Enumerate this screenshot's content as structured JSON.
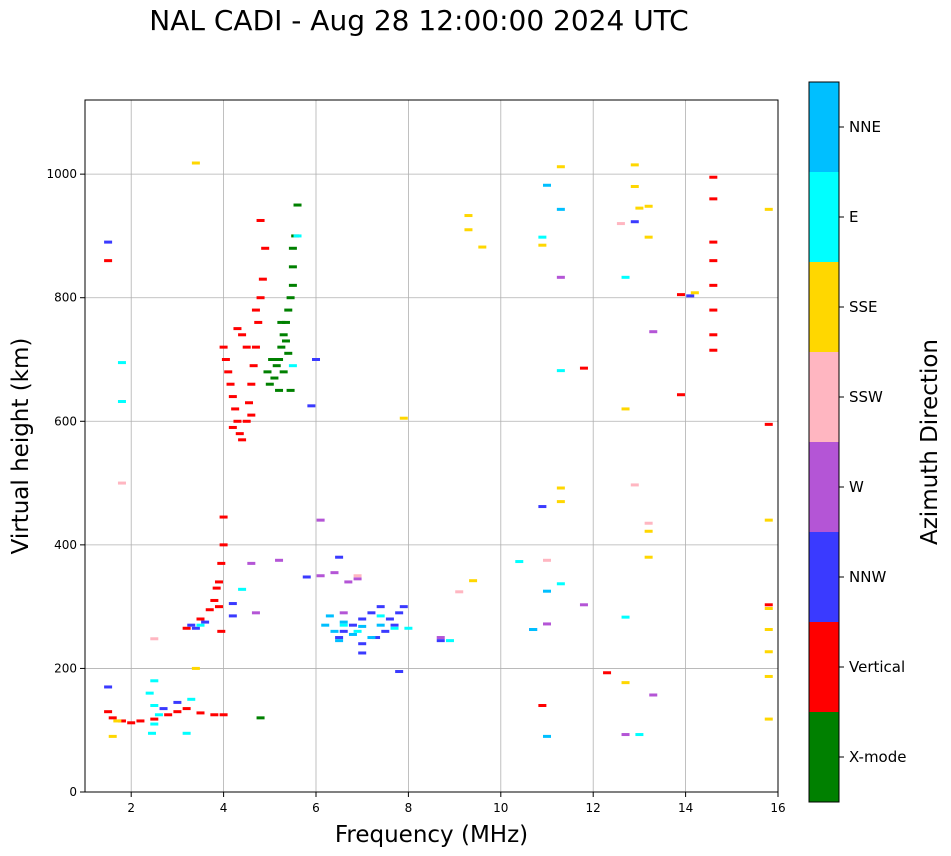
{
  "chart_data": {
    "type": "scatter",
    "title": "NAL CADI - Aug 28 12:00:00 2024 UTC",
    "xlabel": "Frequency (MHz)",
    "ylabel": "Virtual height (km)",
    "xlim": [
      1,
      16
    ],
    "ylim": [
      0,
      1120
    ],
    "xticks": [
      2,
      4,
      6,
      8,
      10,
      12,
      14,
      16
    ],
    "yticks": [
      0,
      200,
      400,
      600,
      800,
      1000
    ],
    "grid": true,
    "colorbar": {
      "label": "Azimuth Direction",
      "categories": [
        "X-mode",
        "Vertical",
        "NNW",
        "W",
        "SSW",
        "SSE",
        "E",
        "NNE"
      ],
      "colors": [
        "#008000",
        "#ff0000",
        "#3a3aff",
        "#b455d6",
        "#ffb6c1",
        "#ffd700",
        "#00ffff",
        "#00bfff"
      ]
    },
    "series": [
      {
        "name": "X-mode",
        "points": [
          [
            5.0,
            660
          ],
          [
            5.1,
            670
          ],
          [
            5.15,
            690
          ],
          [
            5.2,
            700
          ],
          [
            5.25,
            720
          ],
          [
            5.3,
            740
          ],
          [
            5.35,
            760
          ],
          [
            5.4,
            780
          ],
          [
            5.45,
            800
          ],
          [
            5.5,
            820
          ],
          [
            5.5,
            850
          ],
          [
            5.5,
            880
          ],
          [
            5.55,
            900
          ],
          [
            5.6,
            950
          ],
          [
            5.3,
            680
          ],
          [
            5.4,
            710
          ],
          [
            5.45,
            650
          ],
          [
            5.35,
            730
          ],
          [
            5.25,
            760
          ],
          [
            4.95,
            680
          ],
          [
            5.05,
            700
          ],
          [
            5.2,
            650
          ],
          [
            4.8,
            120
          ]
        ]
      },
      {
        "name": "Vertical",
        "points": [
          [
            1.5,
            860
          ],
          [
            1.5,
            130
          ],
          [
            1.6,
            120
          ],
          [
            1.8,
            115
          ],
          [
            2.0,
            112
          ],
          [
            2.2,
            115
          ],
          [
            2.5,
            118
          ],
          [
            2.8,
            125
          ],
          [
            3.0,
            130
          ],
          [
            3.2,
            135
          ],
          [
            3.5,
            128
          ],
          [
            3.8,
            125
          ],
          [
            4.0,
            125
          ],
          [
            3.2,
            265
          ],
          [
            3.5,
            280
          ],
          [
            3.7,
            295
          ],
          [
            3.8,
            310
          ],
          [
            3.9,
            340
          ],
          [
            3.95,
            370
          ],
          [
            4.0,
            400
          ],
          [
            4.0,
            445
          ],
          [
            3.9,
            300
          ],
          [
            3.85,
            330
          ],
          [
            3.95,
            260
          ],
          [
            4.0,
            720
          ],
          [
            4.05,
            700
          ],
          [
            4.1,
            680
          ],
          [
            4.15,
            660
          ],
          [
            4.2,
            640
          ],
          [
            4.25,
            620
          ],
          [
            4.3,
            600
          ],
          [
            4.35,
            580
          ],
          [
            4.4,
            570
          ],
          [
            4.5,
            600
          ],
          [
            4.55,
            630
          ],
          [
            4.6,
            660
          ],
          [
            4.65,
            690
          ],
          [
            4.7,
            720
          ],
          [
            4.75,
            760
          ],
          [
            4.8,
            800
          ],
          [
            4.85,
            830
          ],
          [
            4.9,
            880
          ],
          [
            4.8,
            925
          ],
          [
            4.3,
            750
          ],
          [
            4.4,
            740
          ],
          [
            4.7,
            780
          ],
          [
            4.6,
            610
          ],
          [
            4.2,
            590
          ],
          [
            4.5,
            720
          ],
          [
            10.9,
            140
          ],
          [
            12.3,
            193
          ],
          [
            11.8,
            686
          ],
          [
            13.9,
            643
          ],
          [
            13.9,
            805
          ],
          [
            14.6,
            740
          ],
          [
            14.6,
            780
          ],
          [
            14.6,
            820
          ],
          [
            14.6,
            860
          ],
          [
            14.6,
            890
          ],
          [
            14.6,
            960
          ],
          [
            14.6,
            995
          ],
          [
            14.6,
            715
          ],
          [
            15.8,
            595
          ],
          [
            15.8,
            303
          ]
        ]
      },
      {
        "name": "NNW",
        "points": [
          [
            1.5,
            890
          ],
          [
            1.5,
            170
          ],
          [
            2.7,
            135
          ],
          [
            3.0,
            145
          ],
          [
            3.3,
            270
          ],
          [
            3.4,
            265
          ],
          [
            3.6,
            275
          ],
          [
            4.2,
            305
          ],
          [
            4.2,
            285
          ],
          [
            5.9,
            625
          ],
          [
            6.0,
            700
          ],
          [
            5.8,
            348
          ],
          [
            6.5,
            380
          ],
          [
            6.5,
            250
          ],
          [
            6.6,
            260
          ],
          [
            6.8,
            270
          ],
          [
            7.0,
            280
          ],
          [
            7.2,
            290
          ],
          [
            7.4,
            300
          ],
          [
            7.6,
            280
          ],
          [
            7.8,
            290
          ],
          [
            7.0,
            240
          ],
          [
            7.3,
            250
          ],
          [
            7.5,
            260
          ],
          [
            7.7,
            270
          ],
          [
            7.0,
            225
          ],
          [
            7.8,
            195
          ],
          [
            7.9,
            300
          ],
          [
            8.7,
            245
          ],
          [
            10.7,
            263
          ],
          [
            10.9,
            462
          ],
          [
            12.9,
            923
          ],
          [
            14.1,
            803
          ]
        ]
      },
      {
        "name": "W",
        "points": [
          [
            4.6,
            370
          ],
          [
            4.7,
            290
          ],
          [
            5.2,
            375
          ],
          [
            6.1,
            440
          ],
          [
            6.1,
            350
          ],
          [
            6.4,
            355
          ],
          [
            6.7,
            340
          ],
          [
            6.9,
            345
          ],
          [
            6.6,
            290
          ],
          [
            8.7,
            250
          ],
          [
            11.0,
            272
          ],
          [
            11.3,
            833
          ],
          [
            11.8,
            303
          ],
          [
            12.7,
            93
          ],
          [
            13.3,
            745
          ],
          [
            13.3,
            157
          ]
        ]
      },
      {
        "name": "SSW",
        "points": [
          [
            1.8,
            500
          ],
          [
            2.5,
            248
          ],
          [
            6.9,
            350
          ],
          [
            9.1,
            324
          ],
          [
            11.0,
            375
          ],
          [
            12.6,
            920
          ],
          [
            12.9,
            497
          ],
          [
            13.2,
            435
          ]
        ]
      },
      {
        "name": "SSE",
        "points": [
          [
            1.6,
            90
          ],
          [
            1.7,
            115
          ],
          [
            3.4,
            1018
          ],
          [
            3.4,
            200
          ],
          [
            7.9,
            605
          ],
          [
            9.3,
            933
          ],
          [
            9.3,
            910
          ],
          [
            9.6,
            882
          ],
          [
            9.4,
            342
          ],
          [
            10.9,
            885
          ],
          [
            11.3,
            1012
          ],
          [
            11.3,
            492
          ],
          [
            11.3,
            470
          ],
          [
            12.7,
            620
          ],
          [
            12.7,
            177
          ],
          [
            12.9,
            1015
          ],
          [
            12.9,
            980
          ],
          [
            13.0,
            945
          ],
          [
            13.2,
            948
          ],
          [
            13.2,
            898
          ],
          [
            13.2,
            422
          ],
          [
            13.2,
            380
          ],
          [
            14.2,
            808
          ],
          [
            15.8,
            943
          ],
          [
            15.8,
            440
          ],
          [
            15.8,
            297
          ],
          [
            15.8,
            263
          ],
          [
            15.8,
            227
          ],
          [
            15.8,
            187
          ],
          [
            15.8,
            118
          ]
        ]
      },
      {
        "name": "E",
        "points": [
          [
            1.8,
            632
          ],
          [
            1.8,
            695
          ],
          [
            2.4,
            160
          ],
          [
            2.5,
            180
          ],
          [
            2.5,
            140
          ],
          [
            2.5,
            110
          ],
          [
            2.45,
            95
          ],
          [
            2.6,
            125
          ],
          [
            3.2,
            95
          ],
          [
            3.3,
            150
          ],
          [
            3.5,
            270
          ],
          [
            4.4,
            328
          ],
          [
            5.5,
            690
          ],
          [
            5.6,
            900
          ],
          [
            6.6,
            270
          ],
          [
            6.9,
            260
          ],
          [
            7.4,
            285
          ],
          [
            7.7,
            265
          ],
          [
            8.0,
            265
          ],
          [
            8.9,
            245
          ],
          [
            10.4,
            373
          ],
          [
            10.9,
            898
          ],
          [
            11.3,
            682
          ],
          [
            11.3,
            337
          ],
          [
            12.7,
            833
          ],
          [
            12.7,
            283
          ],
          [
            13.0,
            93
          ]
        ]
      },
      {
        "name": "NNE",
        "points": [
          [
            6.4,
            260
          ],
          [
            6.5,
            245
          ],
          [
            6.6,
            275
          ],
          [
            6.8,
            255
          ],
          [
            7.0,
            268
          ],
          [
            7.2,
            250
          ],
          [
            7.4,
            270
          ],
          [
            6.3,
            285
          ],
          [
            6.2,
            270
          ],
          [
            10.7,
            263
          ],
          [
            11.0,
            982
          ],
          [
            11.3,
            943
          ],
          [
            11.0,
            90
          ],
          [
            11.0,
            325
          ]
        ]
      }
    ]
  }
}
